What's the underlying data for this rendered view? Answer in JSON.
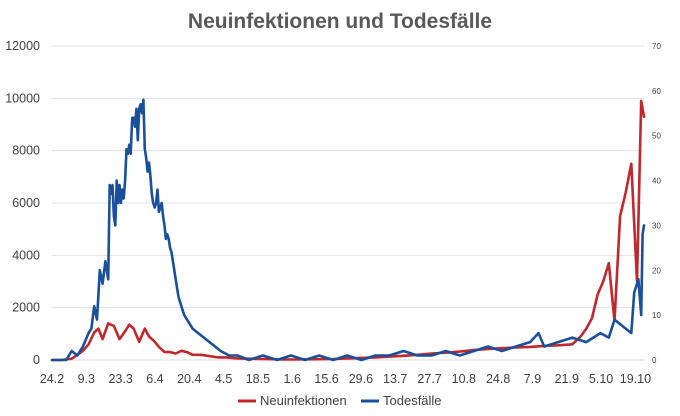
{
  "chart_data": {
    "type": "line",
    "title": "Neuinfektionen und Todesfälle",
    "xlabel": "",
    "ylabel": "",
    "categories": [
      "24.2",
      "9.3",
      "23.3",
      "6.4",
      "20.4",
      "4.5",
      "18.5",
      "1.6",
      "15.6",
      "29.6",
      "13.7",
      "27.7",
      "10.8",
      "24.8",
      "7.9",
      "21.9",
      "5.10",
      "19.10"
    ],
    "y_left": {
      "range": [
        0,
        12000
      ],
      "ticks": [
        0,
        2000,
        4000,
        6000,
        8000,
        10000,
        12000
      ]
    },
    "y_right": {
      "range": [
        0,
        70
      ],
      "ticks": [
        0,
        10,
        20,
        30,
        40,
        50,
        60,
        70
      ]
    },
    "gridlines": true,
    "legend_position": "bottom",
    "series": [
      {
        "name": "Neuinfektionen",
        "axis": "left",
        "color": "#c0282b",
        "points": [
          [
            0,
            0
          ],
          [
            7,
            0
          ],
          [
            14,
            50
          ],
          [
            18,
            200
          ],
          [
            22,
            350
          ],
          [
            26,
            600
          ],
          [
            30,
            1050
          ],
          [
            33,
            1200
          ],
          [
            36,
            800
          ],
          [
            40,
            1400
          ],
          [
            44,
            1300
          ],
          [
            48,
            800
          ],
          [
            52,
            1100
          ],
          [
            55,
            1350
          ],
          [
            58,
            1200
          ],
          [
            62,
            700
          ],
          [
            66,
            1200
          ],
          [
            69,
            900
          ],
          [
            73,
            700
          ],
          [
            76,
            500
          ],
          [
            80,
            300
          ],
          [
            84,
            300
          ],
          [
            88,
            250
          ],
          [
            92,
            350
          ],
          [
            96,
            300
          ],
          [
            100,
            200
          ],
          [
            106,
            200
          ],
          [
            112,
            150
          ],
          [
            118,
            100
          ],
          [
            124,
            100
          ],
          [
            132,
            60
          ],
          [
            140,
            50
          ],
          [
            148,
            40
          ],
          [
            156,
            30
          ],
          [
            164,
            20
          ],
          [
            172,
            20
          ],
          [
            180,
            25
          ],
          [
            190,
            30
          ],
          [
            200,
            40
          ],
          [
            210,
            60
          ],
          [
            220,
            80
          ],
          [
            230,
            100
          ],
          [
            240,
            130
          ],
          [
            250,
            160
          ],
          [
            260,
            200
          ],
          [
            270,
            250
          ],
          [
            280,
            280
          ],
          [
            290,
            320
          ],
          [
            300,
            380
          ],
          [
            310,
            420
          ],
          [
            320,
            450
          ],
          [
            330,
            480
          ],
          [
            340,
            500
          ],
          [
            350,
            540
          ],
          [
            360,
            560
          ],
          [
            370,
            600
          ],
          [
            376,
            900
          ],
          [
            380,
            1200
          ],
          [
            384,
            1600
          ],
          [
            388,
            2500
          ],
          [
            392,
            3000
          ],
          [
            396,
            3700
          ],
          [
            400,
            1500
          ],
          [
            404,
            5500
          ],
          [
            408,
            6400
          ],
          [
            412,
            7500
          ],
          [
            416,
            3000
          ],
          [
            419,
            9900
          ],
          [
            421,
            9300
          ]
        ]
      },
      {
        "name": "Todesfälle",
        "axis": "right",
        "color": "#1a4f9c",
        "points": [
          [
            0,
            0
          ],
          [
            10,
            0
          ],
          [
            14,
            2
          ],
          [
            18,
            1
          ],
          [
            22,
            3
          ],
          [
            26,
            6
          ],
          [
            28,
            7
          ],
          [
            30,
            12
          ],
          [
            32,
            9
          ],
          [
            34,
            20
          ],
          [
            36,
            17
          ],
          [
            38,
            22
          ],
          [
            40,
            18
          ],
          [
            41,
            39
          ],
          [
            42,
            37
          ],
          [
            43,
            39
          ],
          [
            44,
            32
          ],
          [
            45,
            30
          ],
          [
            46,
            40
          ],
          [
            47,
            35
          ],
          [
            48,
            39
          ],
          [
            49,
            35
          ],
          [
            50,
            38
          ],
          [
            51,
            36
          ],
          [
            52,
            40
          ],
          [
            53,
            47
          ],
          [
            54,
            46
          ],
          [
            55,
            48
          ],
          [
            56,
            46
          ],
          [
            57,
            54
          ],
          [
            58,
            54
          ],
          [
            59,
            52
          ],
          [
            60,
            56
          ],
          [
            61,
            49
          ],
          [
            62,
            56
          ],
          [
            63,
            57
          ],
          [
            64,
            55
          ],
          [
            65,
            58
          ],
          [
            66,
            47
          ],
          [
            67,
            45
          ],
          [
            68,
            42
          ],
          [
            69,
            44
          ],
          [
            70,
            41
          ],
          [
            71,
            37
          ],
          [
            72,
            35
          ],
          [
            73,
            34
          ],
          [
            74,
            35
          ],
          [
            75,
            38
          ],
          [
            76,
            33
          ],
          [
            77,
            34
          ],
          [
            78,
            35
          ],
          [
            79,
            32
          ],
          [
            80,
            30
          ],
          [
            81,
            27
          ],
          [
            82,
            28
          ],
          [
            83,
            27
          ],
          [
            84,
            25
          ],
          [
            85,
            24
          ],
          [
            86,
            22
          ],
          [
            87,
            20
          ],
          [
            88,
            18
          ],
          [
            89,
            16
          ],
          [
            90,
            14
          ],
          [
            92,
            12
          ],
          [
            94,
            10
          ],
          [
            96,
            9
          ],
          [
            98,
            8
          ],
          [
            100,
            7
          ],
          [
            104,
            6
          ],
          [
            108,
            5
          ],
          [
            112,
            4
          ],
          [
            116,
            3
          ],
          [
            120,
            2
          ],
          [
            126,
            1
          ],
          [
            132,
            1
          ],
          [
            140,
            0
          ],
          [
            150,
            1
          ],
          [
            160,
            0
          ],
          [
            170,
            1
          ],
          [
            180,
            0
          ],
          [
            190,
            1
          ],
          [
            200,
            0
          ],
          [
            210,
            1
          ],
          [
            220,
            0
          ],
          [
            230,
            1
          ],
          [
            240,
            1
          ],
          [
            250,
            2
          ],
          [
            260,
            1
          ],
          [
            270,
            1
          ],
          [
            280,
            2
          ],
          [
            290,
            1
          ],
          [
            300,
            2
          ],
          [
            310,
            3
          ],
          [
            320,
            2
          ],
          [
            330,
            3
          ],
          [
            340,
            4
          ],
          [
            346,
            6
          ],
          [
            350,
            3
          ],
          [
            360,
            4
          ],
          [
            370,
            5
          ],
          [
            380,
            4
          ],
          [
            390,
            6
          ],
          [
            396,
            5
          ],
          [
            400,
            9
          ],
          [
            404,
            8
          ],
          [
            408,
            7
          ],
          [
            412,
            6
          ],
          [
            414,
            15
          ],
          [
            417,
            18
          ],
          [
            419,
            10
          ],
          [
            420,
            28
          ],
          [
            421,
            30
          ]
        ]
      }
    ]
  }
}
